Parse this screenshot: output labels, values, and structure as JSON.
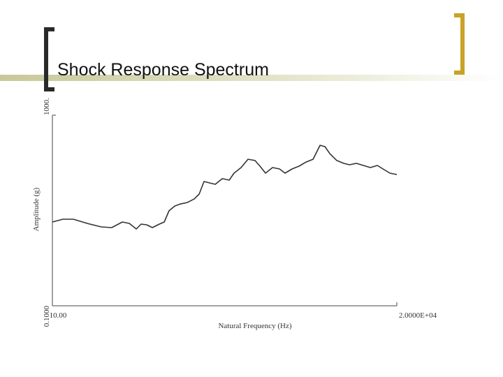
{
  "chart_data": {
    "type": "line",
    "title": "Shock Response Spectrum",
    "x_label": "Natural Frequency (Hz)",
    "y_label": "Amplitude (g)",
    "xscale": "log",
    "yscale": "log",
    "xlim": [
      10,
      20000
    ],
    "ylim": [
      0.1,
      1000
    ],
    "xticks": [
      {
        "value": 10,
        "label": "10.00"
      },
      {
        "value": 20000,
        "label": "2.0000E+04"
      }
    ],
    "yticks": [
      {
        "value": 0.1,
        "label": "0.1000"
      },
      {
        "value": 1000,
        "label": "1000."
      }
    ],
    "color": "#333333",
    "x": [
      10,
      12.6,
      15.9,
      21.6,
      29.4,
      37.1,
      46.8,
      54.6,
      63.7,
      70.9,
      80.2,
      90.8,
      106,
      118,
      131,
      149,
      168,
      196,
      229,
      255,
      284,
      321,
      364,
      425,
      495,
      551,
      643,
      750,
      875,
      975,
      1103,
      1288,
      1503,
      1698,
      1982,
      2312,
      2698,
      3148,
      3673,
      4093,
      4560,
      5321,
      6209,
      7031,
      8204,
      9572,
      11170,
      13030,
      14730,
      17180,
      20000
    ],
    "values": [
      5.73,
      6.56,
      6.56,
      5.36,
      4.53,
      4.38,
      5.73,
      5.36,
      4.09,
      5.18,
      5.01,
      4.38,
      5.18,
      5.73,
      9.84,
      12.4,
      13.7,
      14.7,
      17.5,
      22.1,
      40.6,
      37.9,
      35.4,
      46.5,
      43.4,
      60.8,
      79.6,
      119,
      112,
      85.1,
      60.8,
      79.6,
      74.5,
      60.8,
      74.5,
      85.1,
      104,
      119,
      234,
      219,
      156,
      112,
      97.5,
      91.2,
      97.5,
      88.1,
      79.6,
      88.1,
      74.5,
      60.8,
      56.9
    ]
  }
}
